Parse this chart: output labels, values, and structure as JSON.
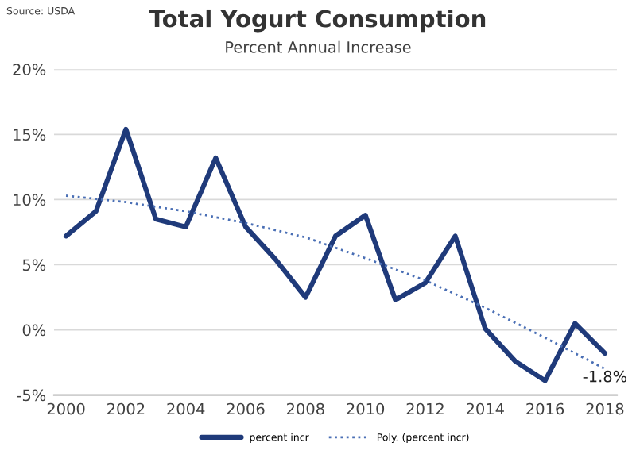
{
  "chart_data": {
    "type": "line",
    "title": "Total Yogurt Consumption",
    "subtitle": "Percent Annual Increase",
    "x": [
      2000,
      2001,
      2002,
      2003,
      2004,
      2005,
      2006,
      2007,
      2008,
      2009,
      2010,
      2011,
      2012,
      2013,
      2014,
      2015,
      2016,
      2017,
      2018
    ],
    "series": [
      {
        "name": "percent incr",
        "color": "#1f3a7a",
        "line_style": "solid",
        "values": [
          7.2,
          9.1,
          15.4,
          8.5,
          7.9,
          13.2,
          7.9,
          5.4,
          2.5,
          7.2,
          8.8,
          2.3,
          3.6,
          7.2,
          0.1,
          -2.4,
          -3.9,
          0.5,
          -1.8
        ]
      },
      {
        "name": "Poly. (percent incr)",
        "color": "#4a6fb5",
        "line_style": "dotted",
        "x": [
          2000,
          2002,
          2004,
          2006,
          2008,
          2010,
          2012,
          2014,
          2016,
          2018
        ],
        "values": [
          10.3,
          9.8,
          9.1,
          8.2,
          7.1,
          5.5,
          3.8,
          1.7,
          -0.6,
          -3.0
        ]
      }
    ],
    "xlim": [
      1999.6,
      2018.4
    ],
    "xticks": [
      2000,
      2002,
      2004,
      2006,
      2008,
      2010,
      2012,
      2014,
      2016,
      2018
    ],
    "ylim": [
      -5,
      20
    ],
    "yticks": [
      {
        "value": -5,
        "label": "-5%"
      },
      {
        "value": 0,
        "label": "0%"
      },
      {
        "value": 5,
        "label": "5%"
      },
      {
        "value": 10,
        "label": "10%"
      },
      {
        "value": 15,
        "label": "15%"
      },
      {
        "value": 20,
        "label": "20%"
      }
    ],
    "grid": "y",
    "legend": "bottom",
    "marker": "none",
    "annotations": [
      "Source: USDA",
      {
        "text": "-1.8%",
        "x": 2018,
        "y": -1.8
      }
    ]
  }
}
